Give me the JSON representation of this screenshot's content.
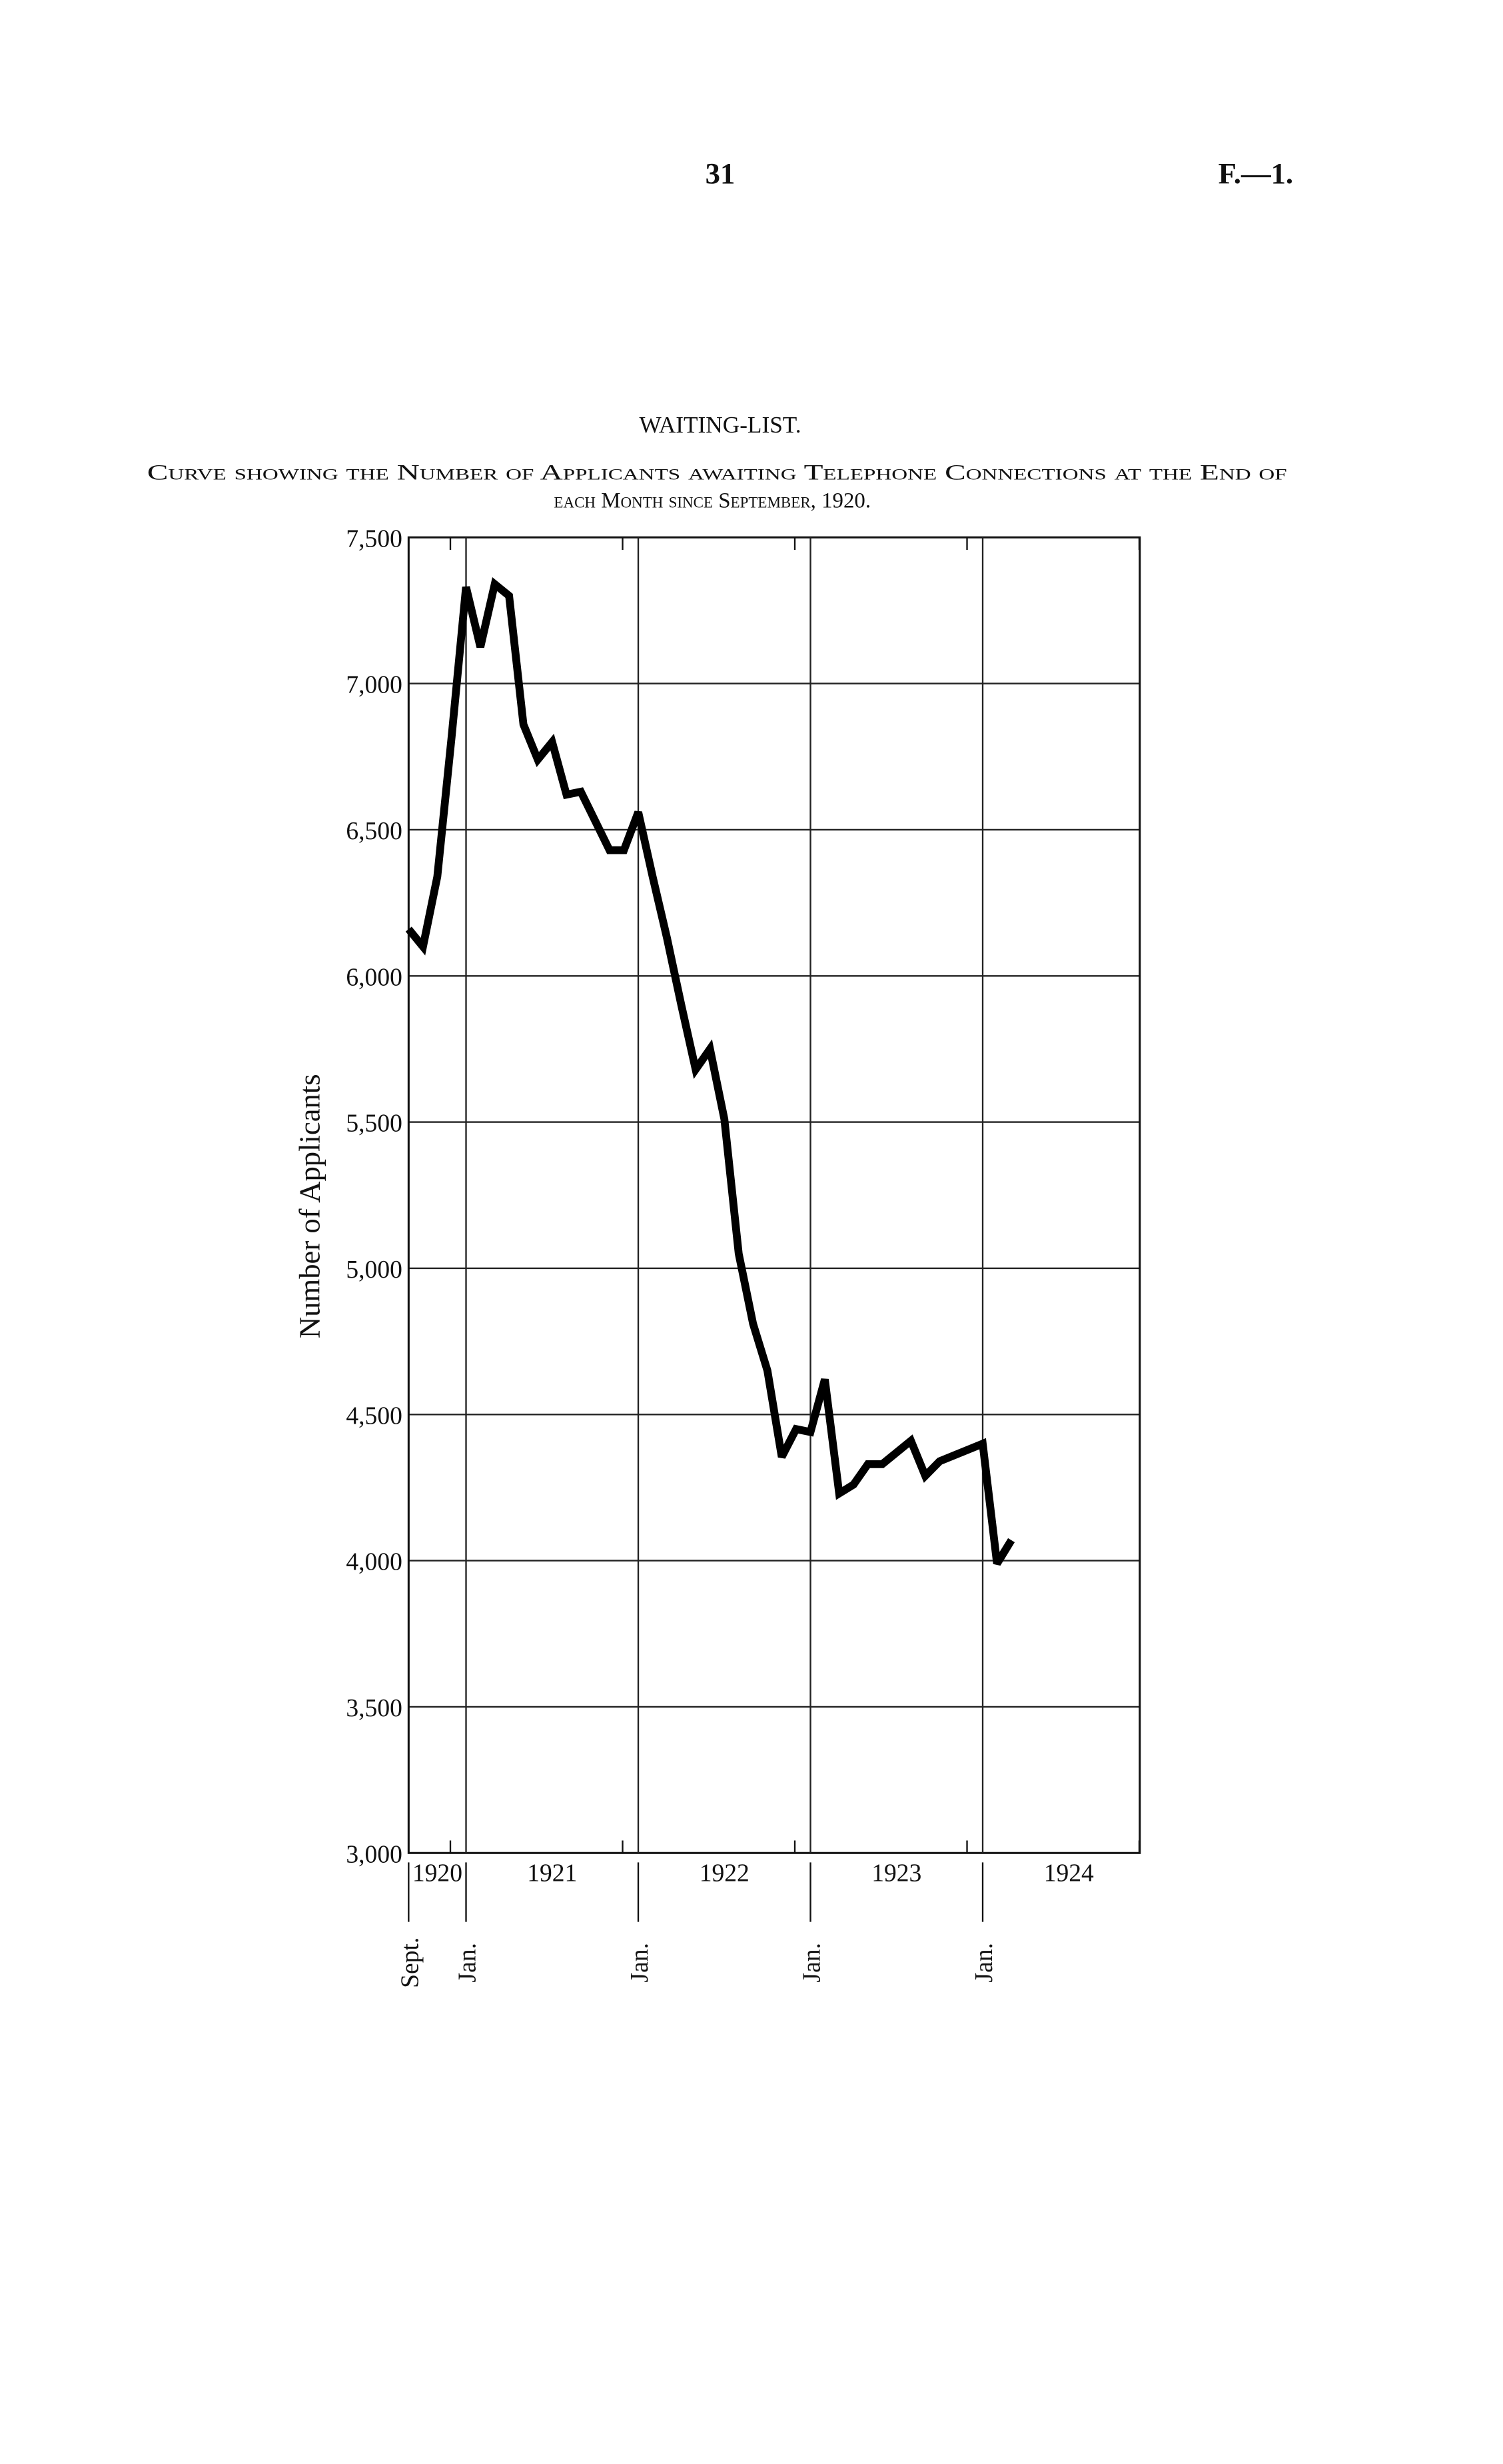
{
  "page_number": "31",
  "page_ref": "F.—1.",
  "chart_data": {
    "type": "line",
    "title": "WAITING-LIST.",
    "subtitle_lines": [
      "Curve showing the Number of Applicants awaiting Telephone Connections at the End of",
      "each Month since September, 1920."
    ],
    "y_label": "Number of Applicants",
    "categories": [
      "Sept.",
      null,
      null,
      null,
      "Jan.",
      null,
      null,
      null,
      null,
      null,
      null,
      null,
      null,
      null,
      null,
      null,
      "Jan.",
      null,
      null,
      null,
      null,
      null,
      null,
      null,
      null,
      null,
      null,
      null,
      "Jan.",
      null,
      null,
      null,
      null,
      null,
      null,
      null,
      null,
      null,
      null,
      null,
      "Jan.",
      null,
      null
    ],
    "year_labels": [
      "1920",
      "1921",
      "1922",
      "1923",
      "1924"
    ],
    "series": [
      {
        "name": "Number of Applicants",
        "color": "#000000",
        "values": [
          6160,
          6100,
          6340,
          6820,
          7330,
          7125,
          7340,
          7300,
          6860,
          6740,
          6800,
          6620,
          6630,
          6530,
          6430,
          6430,
          6560,
          6340,
          6130,
          5900,
          5680,
          5750,
          5510,
          5050,
          4810,
          4650,
          4355,
          4450,
          4440,
          4620,
          4230,
          4260,
          4330,
          4330,
          4370,
          4410,
          4290,
          4340,
          4360,
          4380,
          4400,
          3990,
          4070
        ]
      }
    ],
    "ylim": [
      3000,
      7500
    ],
    "yticks": [
      {
        "value": 3000,
        "label": "3,000"
      },
      {
        "value": 3500,
        "label": "3,500"
      },
      {
        "value": 4000,
        "label": "4,000"
      },
      {
        "value": 4500,
        "label": "4,500"
      },
      {
        "value": 5000,
        "label": "5,000"
      },
      {
        "value": 5500,
        "label": "5,500"
      },
      {
        "value": 6000,
        "label": "6,000"
      },
      {
        "value": 6500,
        "label": "6,500"
      },
      {
        "value": 7000,
        "label": "7,000"
      },
      {
        "value": 7500,
        "label": "7,500"
      }
    ],
    "grid": true
  }
}
